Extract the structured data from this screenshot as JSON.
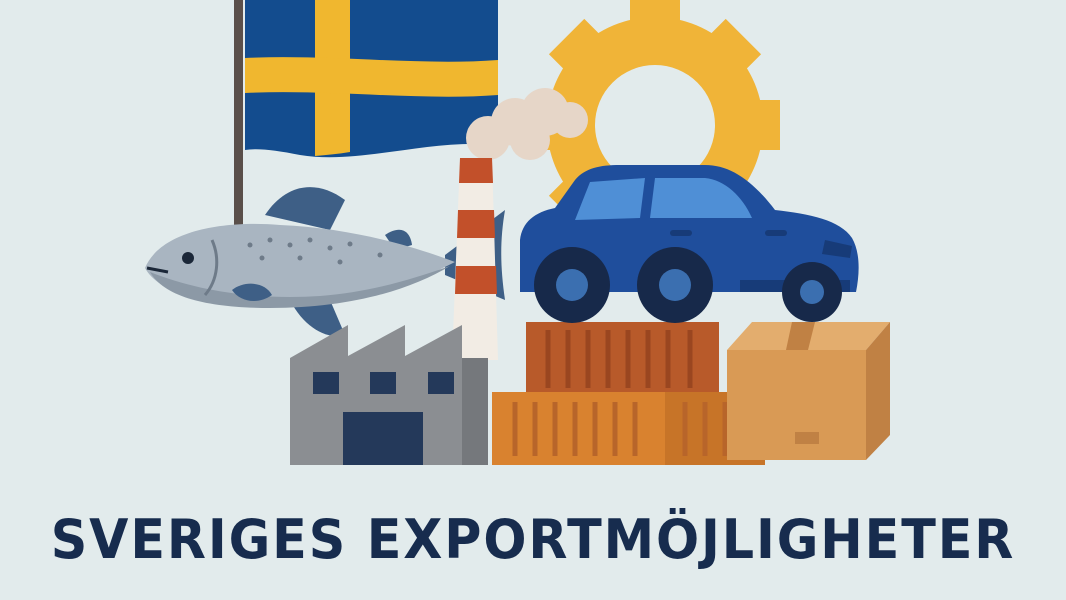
{
  "poster": {
    "title": "SVERIGES EXPORTMÖJLIGHETER"
  },
  "icons": [
    "swedish-flag-icon",
    "gear-icon",
    "salmon-icon",
    "chimney-icon",
    "smoke-icon",
    "car-icon",
    "factory-icon",
    "shipping-container-icon",
    "cardboard-box-icon"
  ],
  "colors": {
    "background": "#e2ebec",
    "flag_blue": "#134c8e",
    "flag_yellow": "#f0b72f",
    "gear": "#f0b438",
    "car": "#1f4e9c",
    "title": "#172c4e",
    "container_rust": "#b85a2a",
    "container_orange": "#d9822f",
    "box": "#d99a55",
    "factory": "#8b8e92"
  }
}
